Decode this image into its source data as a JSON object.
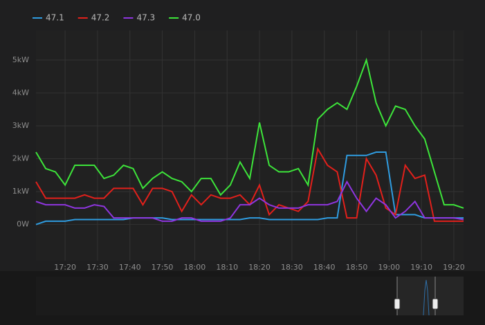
{
  "chart_data": {
    "type": "line",
    "x": [
      "17:11",
      "17:14",
      "17:17",
      "17:20",
      "17:23",
      "17:26",
      "17:29",
      "17:32",
      "17:35",
      "17:38",
      "17:41",
      "17:44",
      "17:47",
      "17:50",
      "17:53",
      "17:56",
      "17:59",
      "18:02",
      "18:05",
      "18:08",
      "18:11",
      "18:14",
      "18:17",
      "18:20",
      "18:23",
      "18:26",
      "18:29",
      "18:32",
      "18:35",
      "18:38",
      "18:41",
      "18:44",
      "18:47",
      "18:50",
      "18:53",
      "18:56",
      "18:59",
      "19:02",
      "19:05",
      "19:08",
      "19:11",
      "19:14",
      "19:17",
      "19:20",
      "19:23"
    ],
    "series": [
      {
        "name": "47.1",
        "color": "#2f9ce0",
        "values": [
          0,
          100,
          100,
          100,
          150,
          150,
          150,
          150,
          150,
          150,
          200,
          200,
          200,
          200,
          150,
          150,
          150,
          150,
          150,
          150,
          150,
          150,
          200,
          200,
          150,
          150,
          150,
          150,
          150,
          150,
          200,
          200,
          2100,
          2100,
          2100,
          2200,
          2200,
          300,
          300,
          300,
          200,
          200,
          200,
          200,
          200
        ]
      },
      {
        "name": "47.2",
        "color": "#e3201b",
        "values": [
          1300,
          800,
          800,
          800,
          800,
          900,
          800,
          800,
          1100,
          1100,
          1100,
          600,
          1100,
          1100,
          1000,
          400,
          900,
          600,
          900,
          800,
          800,
          900,
          600,
          1200,
          300,
          600,
          500,
          400,
          700,
          2300,
          1800,
          1600,
          200,
          200,
          2000,
          1500,
          500,
          300,
          1800,
          1400,
          1500,
          100,
          100,
          100,
          100
        ]
      },
      {
        "name": "47.3",
        "color": "#8f35e0",
        "values": [
          700,
          600,
          600,
          600,
          500,
          500,
          600,
          550,
          200,
          200,
          200,
          200,
          200,
          100,
          100,
          200,
          200,
          100,
          100,
          100,
          200,
          600,
          600,
          800,
          600,
          500,
          500,
          500,
          600,
          600,
          600,
          700,
          1300,
          800,
          400,
          800,
          600,
          200,
          400,
          700,
          200,
          200,
          200,
          200,
          150
        ]
      },
      {
        "name": "47.0",
        "color": "#3de53a",
        "values": [
          2200,
          1700,
          1600,
          1200,
          1800,
          1800,
          1800,
          1400,
          1500,
          1800,
          1700,
          1100,
          1400,
          1600,
          1400,
          1300,
          1000,
          1400,
          1400,
          900,
          1200,
          1900,
          1400,
          3100,
          1800,
          1600,
          1600,
          1700,
          1200,
          3200,
          3500,
          3700,
          3500,
          4200,
          5000,
          3700,
          3000,
          3600,
          3500,
          3000,
          2600,
          1600,
          600,
          600,
          500
        ]
      }
    ],
    "xlim": [
      "17:11",
      "19:23"
    ],
    "xticks": [
      "17:20",
      "17:30",
      "17:40",
      "17:50",
      "18:00",
      "18:10",
      "18:20",
      "18:30",
      "18:40",
      "18:50",
      "19:00",
      "19:10",
      "19:20"
    ],
    "ylim": [
      -1100,
      5900
    ],
    "yticks": [
      {
        "value": 0,
        "label": "0W"
      },
      {
        "value": 1000,
        "label": "1kW"
      },
      {
        "value": 2000,
        "label": "2kW"
      },
      {
        "value": 3000,
        "label": "3kW"
      },
      {
        "value": 4000,
        "label": "4kW"
      },
      {
        "value": 5000,
        "label": "5kW"
      }
    ],
    "grid": true
  }
}
